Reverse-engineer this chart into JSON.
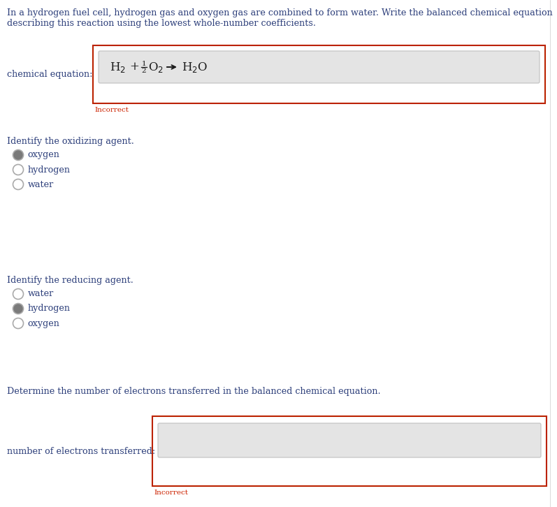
{
  "bg_color": "#ffffff",
  "text_color_dark": "#2c3e7a",
  "text_color_red": "#cc2200",
  "intro_line1": "In a hydrogen fuel cell, hydrogen gas and oxygen gas are combined to form water. Write the balanced chemical equation",
  "intro_line2": "describing this reaction using the lowest whole-number coefficients.",
  "label_chemical": "chemical equation:",
  "incorrect_label": "Incorrect",
  "oxidizing_heading": "Identify the oxidizing agent.",
  "oxidizing_options": [
    "oxygen",
    "hydrogen",
    "water"
  ],
  "oxidizing_selected": 0,
  "reducing_heading": "Identify the reducing agent.",
  "reducing_options": [
    "water",
    "hydrogen",
    "oxygen"
  ],
  "reducing_selected": 1,
  "electrons_heading": "Determine the number of electrons transferred in the balanced chemical equation.",
  "electrons_label": "number of electrons transferred:",
  "box_border_color": "#bb2200",
  "input_bg_color": "#e4e4e4",
  "radio_fill_selected": "#7a7a7a",
  "radio_fill_empty": "#ffffff",
  "radio_border": "#aaaaaa",
  "eq_color": "#1a1a1a",
  "figw": 7.97,
  "figh": 7.26,
  "dpi": 100
}
